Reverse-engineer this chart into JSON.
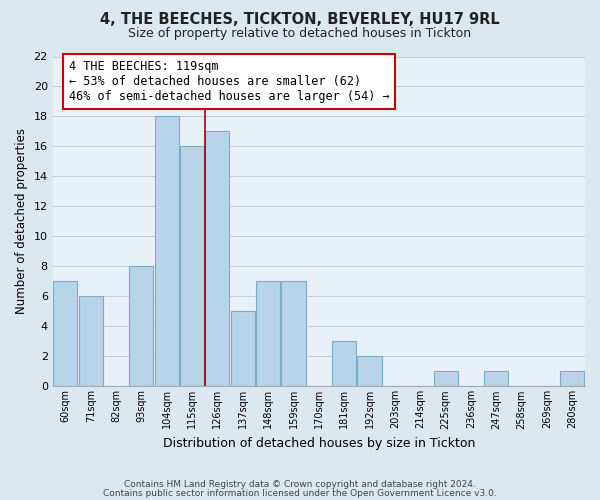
{
  "title": "4, THE BEECHES, TICKTON, BEVERLEY, HU17 9RL",
  "subtitle": "Size of property relative to detached houses in Tickton",
  "xlabel": "Distribution of detached houses by size in Tickton",
  "ylabel": "Number of detached properties",
  "bins": [
    "60sqm",
    "71sqm",
    "82sqm",
    "93sqm",
    "104sqm",
    "115sqm",
    "126sqm",
    "137sqm",
    "148sqm",
    "159sqm",
    "170sqm",
    "181sqm",
    "192sqm",
    "203sqm",
    "214sqm",
    "225sqm",
    "236sqm",
    "247sqm",
    "258sqm",
    "269sqm",
    "280sqm"
  ],
  "values": [
    7,
    6,
    0,
    8,
    18,
    16,
    17,
    5,
    7,
    7,
    0,
    3,
    2,
    0,
    0,
    1,
    0,
    1,
    0,
    0,
    1
  ],
  "bar_color": "#b8d4e8",
  "bar_edge_color": "#7aaec8",
  "highlight_line_color": "#aa0000",
  "ylim": [
    0,
    22
  ],
  "yticks": [
    0,
    2,
    4,
    6,
    8,
    10,
    12,
    14,
    16,
    18,
    20,
    22
  ],
  "annotation_title": "4 THE BEECHES: 119sqm",
  "annotation_line1": "← 53% of detached houses are smaller (62)",
  "annotation_line2": "46% of semi-detached houses are larger (54) →",
  "annotation_box_color": "#ffffff",
  "annotation_box_edge": "#cc0000",
  "footer1": "Contains HM Land Registry data © Crown copyright and database right 2024.",
  "footer2": "Contains public sector information licensed under the Open Government Licence v3.0.",
  "background_color": "#dce8f0",
  "plot_bg_color": "#e8f0f8",
  "grid_color": "#c0ccd8"
}
